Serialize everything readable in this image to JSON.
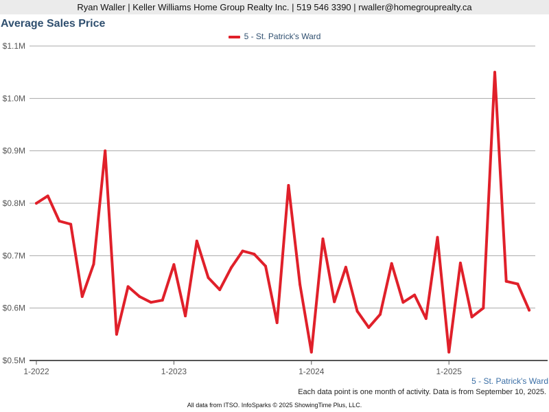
{
  "header": {
    "contact": "Ryan Waller | Keller Williams Home Group Realty Inc. | 519 546 3390 | rwaller@homegrouprealty.ca"
  },
  "chart_data": {
    "type": "line",
    "title": "Average Sales Price",
    "xlabel": "",
    "ylabel": "",
    "x_ticks": [
      "1-2022",
      "1-2023",
      "1-2024",
      "1-2025"
    ],
    "y_ticks": [
      "$0.5M",
      "$0.6M",
      "$0.7M",
      "$0.8M",
      "$0.9M",
      "$1.0M",
      "$1.1M"
    ],
    "ylim": [
      500000,
      1100000
    ],
    "grid": true,
    "legend_position": "top-center",
    "series": [
      {
        "name": "5 - St. Patrick's Ward",
        "color": "#e0202a",
        "x": [
          "2022-01",
          "2022-02",
          "2022-03",
          "2022-04",
          "2022-05",
          "2022-06",
          "2022-07",
          "2022-08",
          "2022-09",
          "2022-10",
          "2022-11",
          "2022-12",
          "2023-01",
          "2023-02",
          "2023-03",
          "2023-04",
          "2023-05",
          "2023-06",
          "2023-07",
          "2023-08",
          "2023-09",
          "2023-10",
          "2023-11",
          "2023-12",
          "2024-01",
          "2024-02",
          "2024-03",
          "2024-04",
          "2024-05",
          "2024-06",
          "2024-07",
          "2024-08",
          "2024-09",
          "2024-10",
          "2024-11",
          "2024-12",
          "2025-01",
          "2025-02",
          "2025-03",
          "2025-04",
          "2025-05",
          "2025-06",
          "2025-07",
          "2025-08"
        ],
        "values": [
          800000,
          814000,
          766000,
          760000,
          622000,
          684000,
          900000,
          550000,
          641000,
          622000,
          611000,
          615000,
          683000,
          585000,
          728000,
          658000,
          635000,
          677000,
          709000,
          703000,
          680000,
          572000,
          834000,
          645000,
          516000,
          732000,
          612000,
          678000,
          594000,
          563000,
          588000,
          685000,
          611000,
          625000,
          580000,
          735000,
          516000,
          686000,
          583000,
          600000,
          1050000,
          651000,
          646000,
          596000
        ]
      }
    ]
  },
  "series_end_label": "5 - St. Patrick's Ward",
  "footnote": "Each data point is one month of activity. Data is from September 10, 2025.",
  "credit": "All data from ITSO. InfoSparks © 2025 ShowingTime Plus, LLC."
}
